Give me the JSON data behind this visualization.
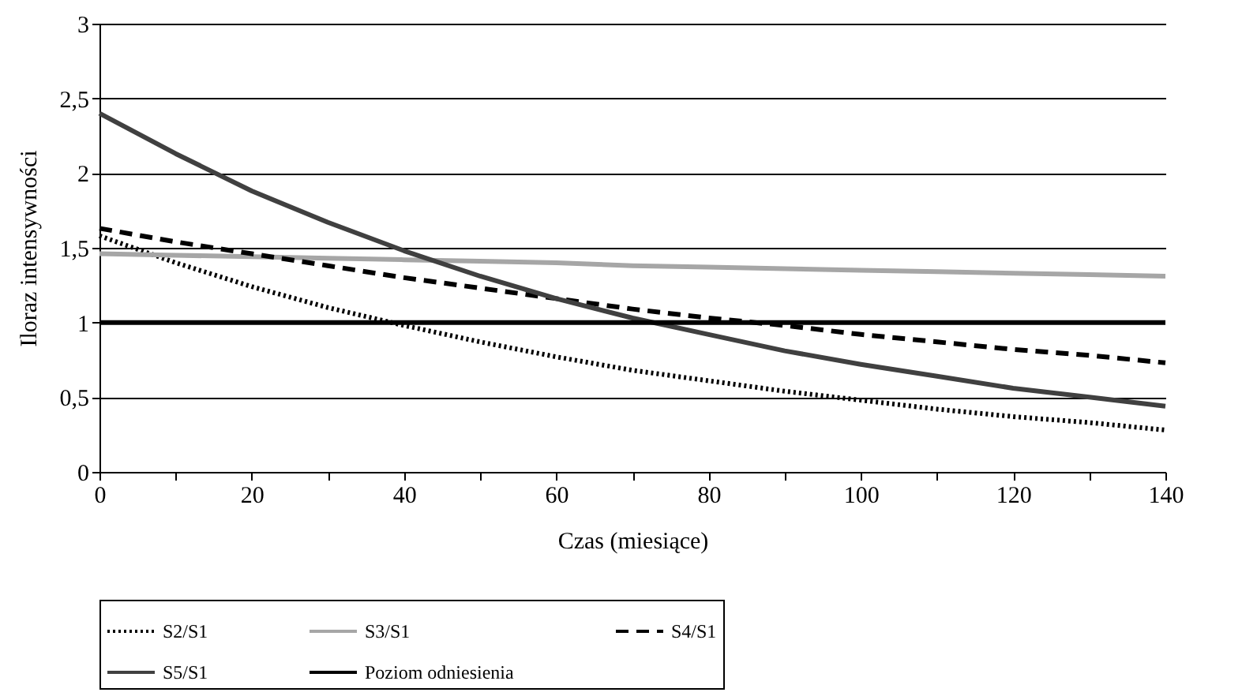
{
  "chart_data": {
    "type": "line",
    "xlabel": "Czas (miesiące)",
    "ylabel": "Iloraz intensywności",
    "x": [
      0,
      10,
      20,
      30,
      40,
      50,
      60,
      70,
      80,
      90,
      100,
      110,
      120,
      130,
      140
    ],
    "xlim": [
      0,
      140
    ],
    "xticks": [
      0,
      {
        "value": 10,
        "label": null
      },
      20,
      {
        "value": 30,
        "label": null
      },
      40,
      {
        "value": 50,
        "label": null
      },
      60,
      {
        "value": 70,
        "label": null
      },
      80,
      {
        "value": 90,
        "label": null
      },
      100,
      {
        "value": 110,
        "label": null
      },
      120,
      {
        "value": 130,
        "label": null
      },
      140
    ],
    "ylim": [
      0,
      3
    ],
    "yticks": [
      0,
      {
        "value": 0.5,
        "label": "0,5"
      },
      1,
      {
        "value": 1.5,
        "label": "1,5"
      },
      2,
      {
        "value": 2.5,
        "label": "2,5"
      },
      3
    ],
    "grid": "y",
    "legend": "bottom",
    "marker": "none",
    "series": [
      {
        "name": "S2/S1",
        "color": "#000000",
        "line_style": "dotted",
        "values": [
          1.58,
          1.4,
          1.24,
          1.1,
          0.98,
          0.87,
          0.77,
          0.68,
          0.61,
          0.54,
          0.48,
          0.42,
          0.37,
          0.33,
          0.28
        ]
      },
      {
        "name": "S3/S1",
        "color": "#a6a6a6",
        "line_style": "solid",
        "values": [
          1.46,
          1.45,
          1.44,
          1.43,
          1.42,
          1.41,
          1.4,
          1.38,
          1.37,
          1.36,
          1.35,
          1.34,
          1.33,
          1.32,
          1.31
        ]
      },
      {
        "name": "S4/S1",
        "color": "#000000",
        "line_style": "dashed",
        "values": [
          1.63,
          1.54,
          1.46,
          1.38,
          1.3,
          1.23,
          1.16,
          1.09,
          1.03,
          0.98,
          0.92,
          0.87,
          0.82,
          0.78,
          0.73
        ]
      },
      {
        "name": "S5/S1",
        "color": "#404040",
        "line_style": "solid",
        "values": [
          2.4,
          2.13,
          1.88,
          1.67,
          1.48,
          1.31,
          1.16,
          1.03,
          0.92,
          0.81,
          0.72,
          0.64,
          0.56,
          0.5,
          0.44
        ]
      },
      {
        "name": "Poziom odniesienia",
        "color": "#000000",
        "line_style": "solid",
        "x": [
          0,
          140
        ],
        "values": [
          1,
          1
        ]
      }
    ]
  }
}
